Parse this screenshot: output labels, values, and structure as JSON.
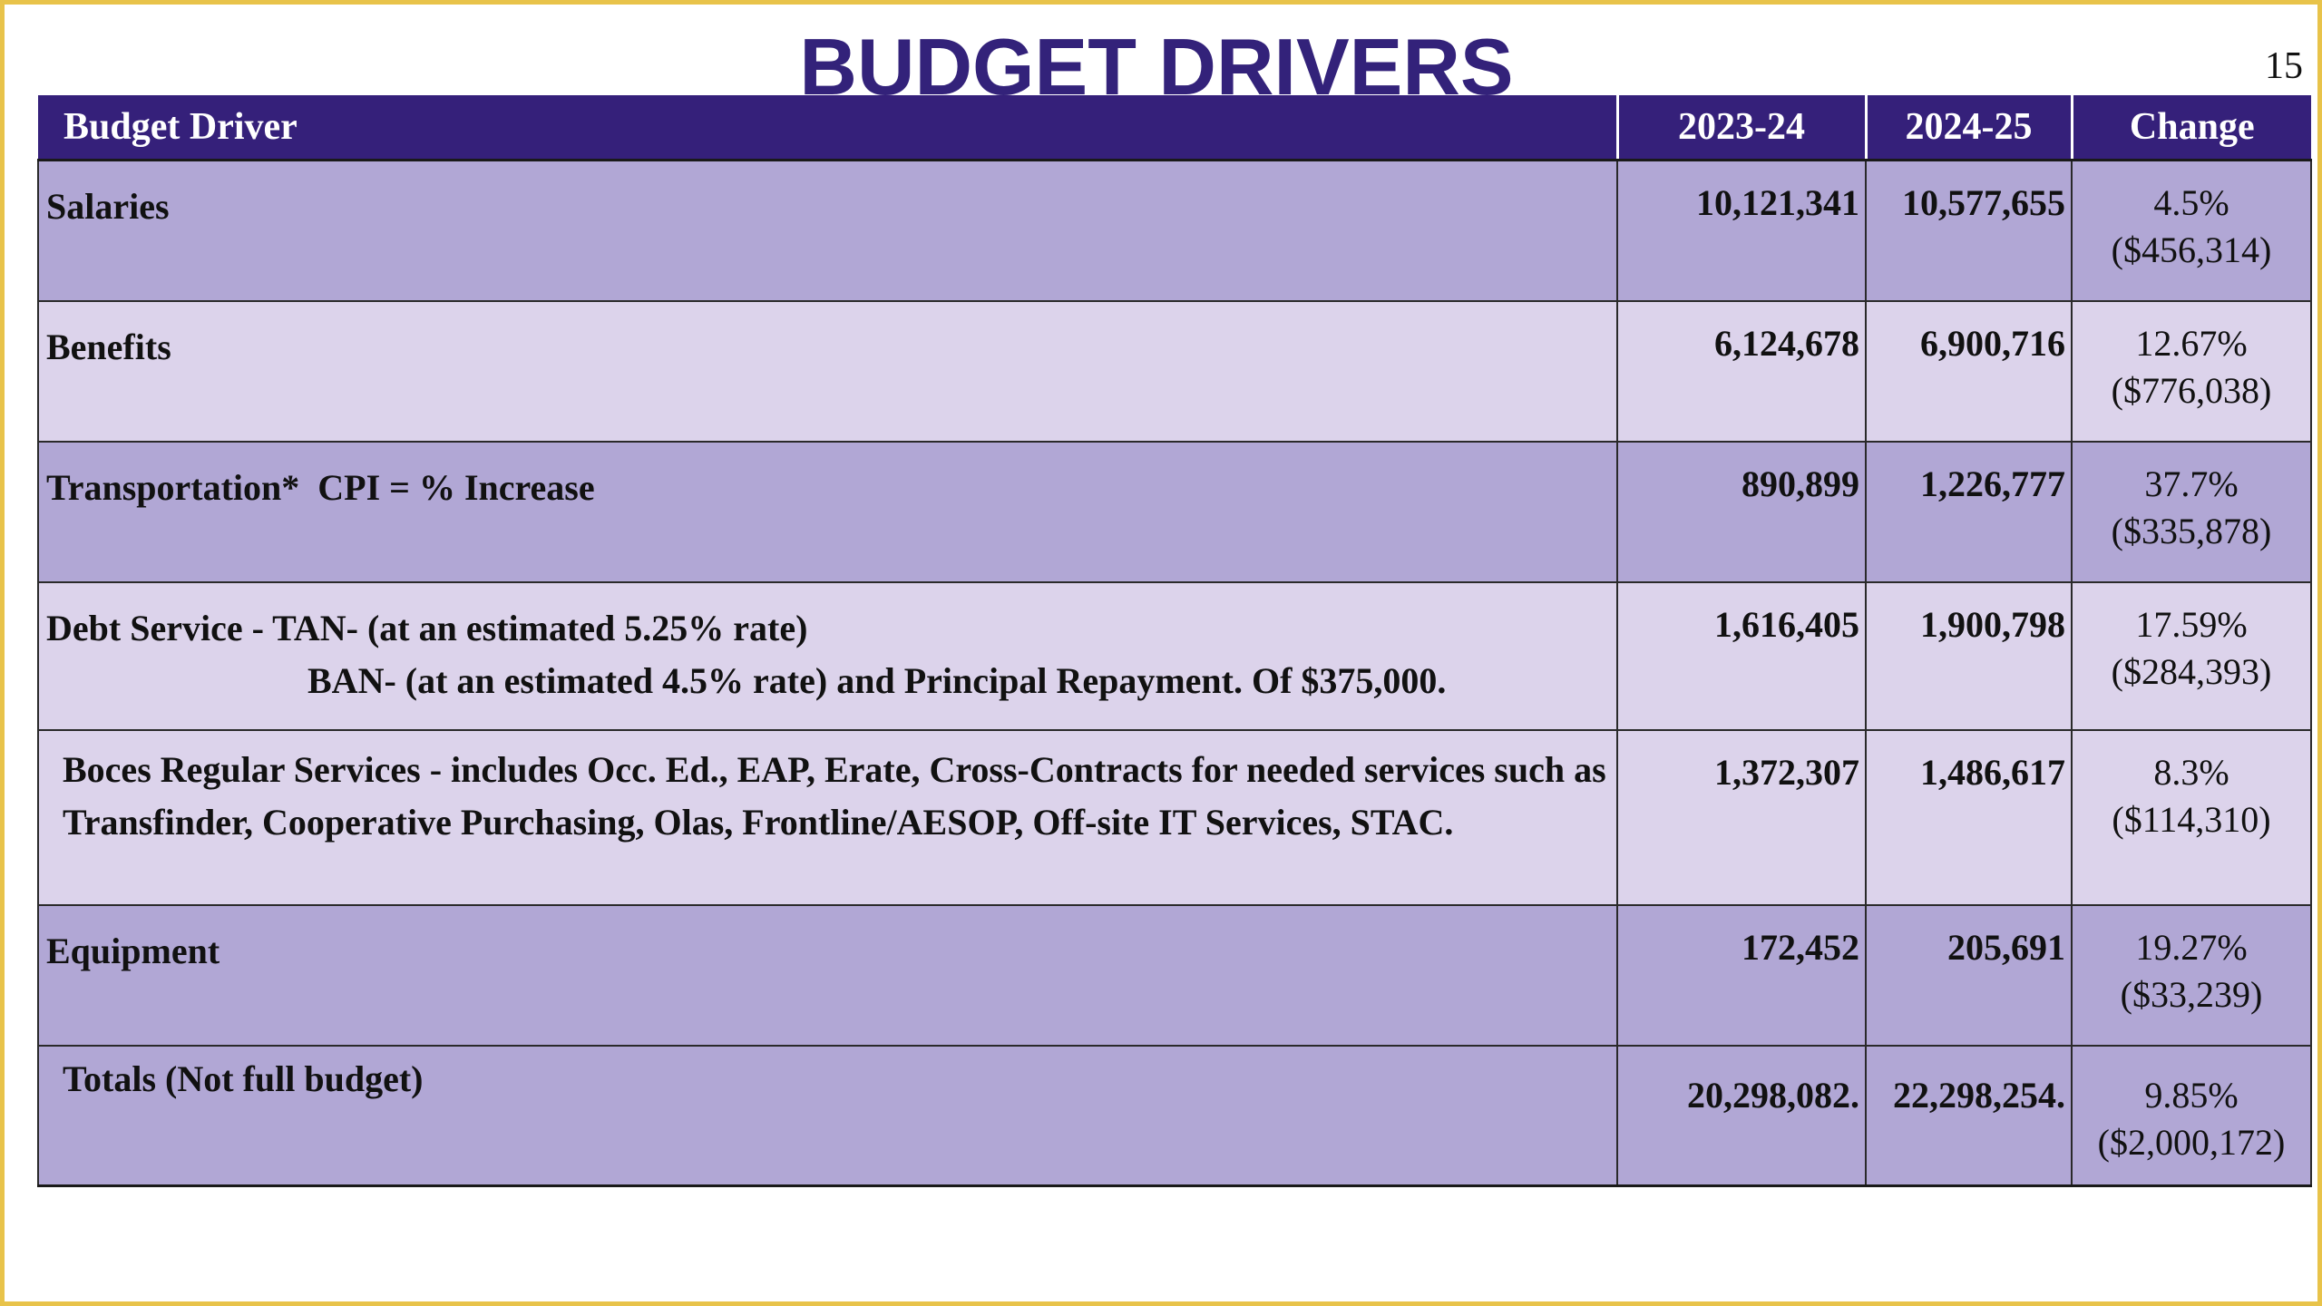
{
  "title": "BUDGET DRIVERS",
  "page_number": "15",
  "table": {
    "headers": [
      "Budget Driver",
      "2023-24",
      "2024-25",
      "Change"
    ],
    "rows": [
      {
        "driver": "Salaries",
        "y2023": "10,121,341",
        "y2024": "10,577,655",
        "pct": "4.5%",
        "amount": "($456,314)"
      },
      {
        "driver": "Benefits",
        "y2023": "6,124,678",
        "y2024": "6,900,716",
        "pct": "12.67%",
        "amount": "($776,038)"
      },
      {
        "driver": "Transportation*  CPI = % Increase",
        "y2023": "890,899",
        "y2024": "1,226,777",
        "pct": "37.7%",
        "amount": "($335,878)"
      },
      {
        "driver": "Debt Service - TAN- (at an estimated 5.25% rate)",
        "driver_line2": "BAN- (at an estimated 4.5% rate) and Principal Repayment. Of $375,000.",
        "y2023": "1,616,405",
        "y2024": "1,900,798",
        "pct": "17.59%",
        "amount": "($284,393)"
      },
      {
        "driver": "Boces Regular Services - includes Occ. Ed., EAP, Erate, Cross-Contracts for needed services such as Transfinder, Cooperative Purchasing, Olas, Frontline/AESOP, Off-site IT Services, STAC.",
        "y2023": "1,372,307",
        "y2024": "1,486,617",
        "pct": "8.3%",
        "amount": "($114,310)"
      },
      {
        "driver": "Equipment",
        "y2023": "172,452",
        "y2024": "205,691",
        "pct": "19.27%",
        "amount": "($33,239)"
      },
      {
        "driver": "Totals (Not full budget)",
        "y2023": "20,298,082.",
        "y2024": "22,298,254.",
        "pct": "9.85%",
        "amount": "($2,000,172)"
      }
    ]
  },
  "colors": {
    "title": "#33227a",
    "header_bg": "#35207a",
    "row_dark": "#b1a7d5",
    "row_light": "#dcd3eb",
    "frame": "#e8c34a"
  }
}
